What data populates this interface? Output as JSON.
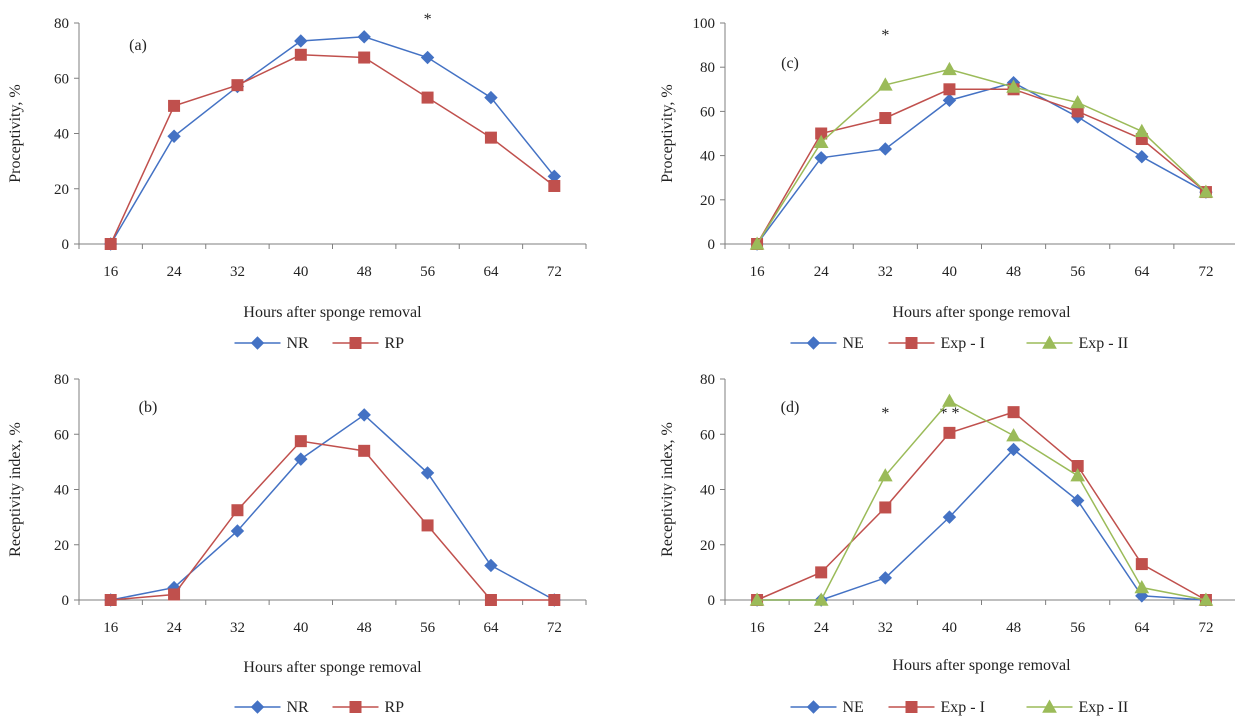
{
  "colors": {
    "NR": "#4472C4",
    "NE": "#4472C4",
    "RP": "#C0504D",
    "Exp - I": "#C0504D",
    "Exp - II": "#9BBB59"
  },
  "chart_data": [
    {
      "panel": "(a)",
      "type": "line",
      "x": [
        16,
        24,
        32,
        40,
        48,
        56,
        64,
        72
      ],
      "xlabel": "Hours after sponge removal",
      "ylabel": "Proceptivity, %",
      "ylim": [
        0,
        80
      ],
      "yticks": [
        0,
        20,
        40,
        60,
        80
      ],
      "annotations": [
        {
          "x": 56,
          "text": "*"
        }
      ],
      "legend_position": "bottom",
      "series": [
        {
          "name": "NR",
          "marker": "diamond",
          "color": "#4472C4",
          "values": [
            0,
            39,
            57,
            73.5,
            75,
            67.5,
            53,
            24.5
          ]
        },
        {
          "name": "RP",
          "marker": "square",
          "color": "#C0504D",
          "values": [
            0,
            50,
            57.5,
            68.5,
            67.5,
            53,
            38.5,
            21
          ]
        }
      ]
    },
    {
      "panel": "(b)",
      "type": "line",
      "x": [
        16,
        24,
        32,
        40,
        48,
        56,
        64,
        72
      ],
      "xlabel": "Hours after sponge removal",
      "ylabel": "Receptivity index, %",
      "ylim": [
        0,
        80
      ],
      "yticks": [
        0,
        20,
        40,
        60,
        80
      ],
      "annotations": [],
      "legend_position": "bottom",
      "series": [
        {
          "name": "NR",
          "marker": "diamond",
          "color": "#4472C4",
          "values": [
            0,
            4.5,
            25,
            51,
            67,
            46,
            12.5,
            0
          ]
        },
        {
          "name": "RP",
          "marker": "square",
          "color": "#C0504D",
          "values": [
            0,
            2,
            32.5,
            57.5,
            54,
            27,
            0,
            0
          ]
        }
      ]
    },
    {
      "panel": "(c)",
      "type": "line",
      "x": [
        16,
        24,
        32,
        40,
        48,
        56,
        64,
        72
      ],
      "xlabel": "Hours after sponge removal",
      "ylabel": "Proceptivity, %",
      "ylim": [
        0,
        100
      ],
      "yticks": [
        0,
        20,
        40,
        60,
        80,
        100
      ],
      "annotations": [
        {
          "x": 32,
          "text": "*"
        }
      ],
      "legend_position": "bottom",
      "series": [
        {
          "name": "NE",
          "marker": "diamond",
          "color": "#4472C4",
          "values": [
            0,
            39,
            43,
            65,
            73,
            57.5,
            39.5,
            23.5
          ]
        },
        {
          "name": "Exp - I",
          "marker": "square",
          "color": "#C0504D",
          "values": [
            0,
            50,
            57,
            70,
            70,
            60,
            47.5,
            23.5
          ]
        },
        {
          "name": "Exp - II",
          "marker": "triangle",
          "color": "#9BBB59",
          "values": [
            0,
            46,
            72,
            79,
            71,
            64,
            51,
            23.5
          ]
        }
      ]
    },
    {
      "panel": "(d)",
      "type": "line",
      "x": [
        16,
        24,
        32,
        40,
        48,
        56,
        64,
        72
      ],
      "xlabel": "Hours after sponge removal",
      "ylabel": "Receptivity index, %",
      "ylim": [
        0,
        80
      ],
      "yticks": [
        0,
        20,
        40,
        60,
        80
      ],
      "annotations": [
        {
          "x": 32,
          "text": "*"
        },
        {
          "x": 40,
          "text": "* *"
        }
      ],
      "legend_position": "bottom",
      "series": [
        {
          "name": "NE",
          "marker": "diamond",
          "color": "#4472C4",
          "values": [
            0,
            0,
            8,
            30,
            54.5,
            36,
            1.5,
            0
          ]
        },
        {
          "name": "Exp - I",
          "marker": "square",
          "color": "#C0504D",
          "values": [
            0,
            10,
            33.5,
            60.5,
            68,
            48.5,
            13,
            0
          ]
        },
        {
          "name": "Exp - II",
          "marker": "triangle",
          "color": "#9BBB59",
          "values": [
            0,
            0,
            45,
            72,
            59.5,
            45,
            4.5,
            0
          ]
        }
      ]
    }
  ]
}
